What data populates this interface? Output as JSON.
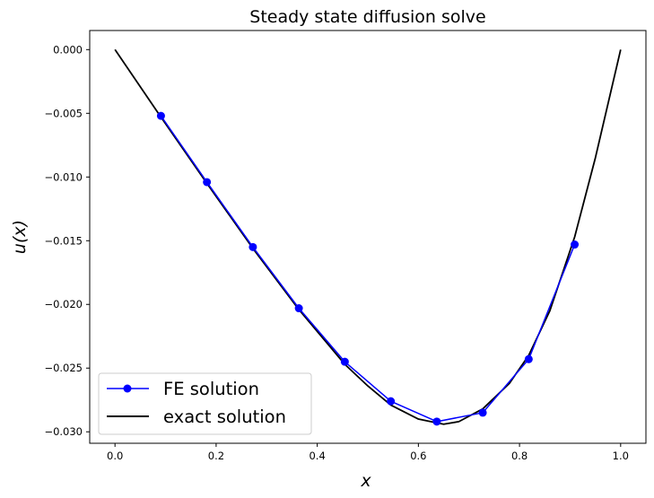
{
  "chart_data": {
    "type": "line",
    "title": "Steady state diffusion solve",
    "xlabel": "x",
    "ylabel": "u(x)",
    "xlim": [
      -0.05,
      1.05
    ],
    "ylim": [
      -0.0309,
      0.0015
    ],
    "xticks": [
      0.0,
      0.2,
      0.4,
      0.6,
      0.8,
      1.0
    ],
    "xtick_labels": [
      "0.0",
      "0.2",
      "0.4",
      "0.6",
      "0.8",
      "1.0"
    ],
    "yticks": [
      0.0,
      -0.005,
      -0.01,
      -0.015,
      -0.02,
      -0.025,
      -0.03
    ],
    "ytick_labels": [
      "0.000",
      "−0.005",
      "−0.010",
      "−0.015",
      "−0.020",
      "−0.025",
      "−0.030"
    ],
    "grid": false,
    "legend_position": "lower-left",
    "series": [
      {
        "name": "FE solution",
        "color": "#0000ff",
        "marker": "circle",
        "x": [
          0.0909,
          0.1818,
          0.2727,
          0.3636,
          0.4545,
          0.5455,
          0.6364,
          0.7273,
          0.8182,
          0.9091
        ],
        "y": [
          -0.0052,
          -0.0104,
          -0.0155,
          -0.0203,
          -0.0245,
          -0.0276,
          -0.0292,
          -0.0285,
          -0.0243,
          -0.0153
        ]
      },
      {
        "name": "exact solution",
        "color": "#000000",
        "marker": "none",
        "x": [
          0.0,
          0.0909,
          0.1818,
          0.2727,
          0.3636,
          0.4545,
          0.5,
          0.5455,
          0.6,
          0.6364,
          0.65,
          0.68,
          0.7273,
          0.78,
          0.8182,
          0.86,
          0.9091,
          0.95,
          1.0
        ],
        "y": [
          0.0,
          -0.0053,
          -0.0105,
          -0.0156,
          -0.0204,
          -0.0247,
          -0.0264,
          -0.0279,
          -0.029,
          -0.0293,
          -0.0294,
          -0.0292,
          -0.0282,
          -0.0262,
          -0.024,
          -0.0205,
          -0.0147,
          -0.0085,
          0.0
        ]
      }
    ]
  }
}
